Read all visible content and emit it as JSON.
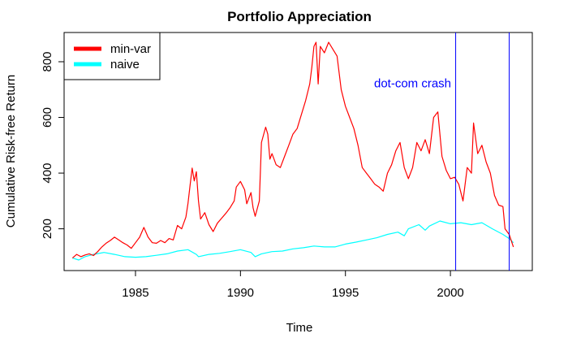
{
  "chart_data": {
    "type": "line",
    "title": "Portfolio Appreciation",
    "xlabel": "Time",
    "ylabel": "Cumulative Risk-free Return",
    "xlim": [
      1981.6,
      2003.9
    ],
    "ylim": [
      50,
      905
    ],
    "x_ticks": [
      1985,
      1990,
      1995,
      2000
    ],
    "y_ticks": [
      200,
      400,
      600,
      800
    ],
    "grid": false,
    "legend_position": "top-left",
    "annotation": {
      "text": "dot-com crash",
      "x": 1998.2,
      "y": 708,
      "color": "#0000ff"
    },
    "vlines": [
      {
        "x": 2000.25,
        "color": "#0000ff"
      },
      {
        "x": 2002.8,
        "color": "#0000ff"
      }
    ],
    "series": [
      {
        "name": "min-var",
        "color": "#ff0000",
        "points": [
          [
            1982.0,
            95
          ],
          [
            1982.2,
            108
          ],
          [
            1982.4,
            100
          ],
          [
            1982.6,
            106
          ],
          [
            1982.8,
            110
          ],
          [
            1983.0,
            104
          ],
          [
            1983.2,
            118
          ],
          [
            1983.4,
            135
          ],
          [
            1983.6,
            148
          ],
          [
            1983.8,
            158
          ],
          [
            1984.0,
            170
          ],
          [
            1984.2,
            160
          ],
          [
            1984.4,
            150
          ],
          [
            1984.6,
            142
          ],
          [
            1984.8,
            130
          ],
          [
            1985.0,
            150
          ],
          [
            1985.2,
            170
          ],
          [
            1985.4,
            205
          ],
          [
            1985.6,
            170
          ],
          [
            1985.8,
            150
          ],
          [
            1986.0,
            148
          ],
          [
            1986.2,
            158
          ],
          [
            1986.4,
            150
          ],
          [
            1986.6,
            165
          ],
          [
            1986.8,
            160
          ],
          [
            1987.0,
            212
          ],
          [
            1987.2,
            200
          ],
          [
            1987.4,
            242
          ],
          [
            1987.5,
            292
          ],
          [
            1987.6,
            355
          ],
          [
            1987.7,
            418
          ],
          [
            1987.8,
            372
          ],
          [
            1987.9,
            405
          ],
          [
            1988.0,
            300
          ],
          [
            1988.1,
            235
          ],
          [
            1988.3,
            258
          ],
          [
            1988.5,
            215
          ],
          [
            1988.7,
            190
          ],
          [
            1988.9,
            220
          ],
          [
            1989.1,
            238
          ],
          [
            1989.3,
            255
          ],
          [
            1989.5,
            275
          ],
          [
            1989.7,
            300
          ],
          [
            1989.8,
            350
          ],
          [
            1990.0,
            370
          ],
          [
            1990.2,
            340
          ],
          [
            1990.3,
            290
          ],
          [
            1990.5,
            330
          ],
          [
            1990.6,
            275
          ],
          [
            1990.7,
            245
          ],
          [
            1990.9,
            300
          ],
          [
            1991.0,
            510
          ],
          [
            1991.2,
            565
          ],
          [
            1991.3,
            540
          ],
          [
            1991.4,
            450
          ],
          [
            1991.5,
            470
          ],
          [
            1991.7,
            430
          ],
          [
            1991.9,
            420
          ],
          [
            1992.1,
            460
          ],
          [
            1992.3,
            500
          ],
          [
            1992.5,
            540
          ],
          [
            1992.7,
            560
          ],
          [
            1992.9,
            610
          ],
          [
            1993.1,
            660
          ],
          [
            1993.3,
            720
          ],
          [
            1993.4,
            780
          ],
          [
            1993.5,
            855
          ],
          [
            1993.6,
            870
          ],
          [
            1993.7,
            720
          ],
          [
            1993.8,
            855
          ],
          [
            1994.0,
            832
          ],
          [
            1994.2,
            870
          ],
          [
            1994.4,
            845
          ],
          [
            1994.6,
            820
          ],
          [
            1994.8,
            700
          ],
          [
            1995.0,
            640
          ],
          [
            1995.2,
            600
          ],
          [
            1995.4,
            560
          ],
          [
            1995.6,
            500
          ],
          [
            1995.8,
            420
          ],
          [
            1996.0,
            400
          ],
          [
            1996.2,
            380
          ],
          [
            1996.4,
            360
          ],
          [
            1996.6,
            350
          ],
          [
            1996.8,
            335
          ],
          [
            1997.0,
            400
          ],
          [
            1997.2,
            430
          ],
          [
            1997.4,
            480
          ],
          [
            1997.6,
            510
          ],
          [
            1997.8,
            420
          ],
          [
            1998.0,
            380
          ],
          [
            1998.2,
            420
          ],
          [
            1998.4,
            510
          ],
          [
            1998.6,
            480
          ],
          [
            1998.8,
            520
          ],
          [
            1999.0,
            470
          ],
          [
            1999.2,
            600
          ],
          [
            1999.4,
            620
          ],
          [
            1999.6,
            460
          ],
          [
            1999.8,
            410
          ],
          [
            2000.0,
            380
          ],
          [
            2000.2,
            385
          ],
          [
            2000.4,
            360
          ],
          [
            2000.6,
            300
          ],
          [
            2000.8,
            420
          ],
          [
            2001.0,
            400
          ],
          [
            2001.1,
            580
          ],
          [
            2001.3,
            470
          ],
          [
            2001.5,
            500
          ],
          [
            2001.7,
            440
          ],
          [
            2001.9,
            400
          ],
          [
            2002.1,
            320
          ],
          [
            2002.3,
            285
          ],
          [
            2002.5,
            280
          ],
          [
            2002.6,
            200
          ],
          [
            2002.8,
            180
          ],
          [
            2003.0,
            135
          ]
        ]
      },
      {
        "name": "naive",
        "color": "#00ffff",
        "points": [
          [
            1982.0,
            95
          ],
          [
            1982.3,
            88
          ],
          [
            1982.6,
            100
          ],
          [
            1983.0,
            108
          ],
          [
            1983.5,
            115
          ],
          [
            1984.0,
            108
          ],
          [
            1984.5,
            100
          ],
          [
            1985.0,
            98
          ],
          [
            1985.5,
            100
          ],
          [
            1986.0,
            105
          ],
          [
            1986.5,
            110
          ],
          [
            1987.0,
            120
          ],
          [
            1987.5,
            125
          ],
          [
            1987.9,
            108
          ],
          [
            1988.0,
            100
          ],
          [
            1988.5,
            108
          ],
          [
            1989.0,
            112
          ],
          [
            1989.5,
            118
          ],
          [
            1990.0,
            125
          ],
          [
            1990.5,
            115
          ],
          [
            1990.7,
            100
          ],
          [
            1991.0,
            110
          ],
          [
            1991.5,
            118
          ],
          [
            1992.0,
            120
          ],
          [
            1992.5,
            128
          ],
          [
            1993.0,
            132
          ],
          [
            1993.5,
            138
          ],
          [
            1994.0,
            135
          ],
          [
            1994.5,
            135
          ],
          [
            1995.0,
            145
          ],
          [
            1995.5,
            152
          ],
          [
            1996.0,
            160
          ],
          [
            1996.5,
            168
          ],
          [
            1997.0,
            180
          ],
          [
            1997.5,
            188
          ],
          [
            1997.8,
            175
          ],
          [
            1998.0,
            200
          ],
          [
            1998.5,
            215
          ],
          [
            1998.8,
            195
          ],
          [
            1999.0,
            210
          ],
          [
            1999.5,
            228
          ],
          [
            2000.0,
            218
          ],
          [
            2000.5,
            222
          ],
          [
            2001.0,
            215
          ],
          [
            2001.5,
            222
          ],
          [
            2002.0,
            200
          ],
          [
            2002.5,
            180
          ],
          [
            2002.8,
            165
          ],
          [
            2003.0,
            150
          ]
        ]
      }
    ]
  }
}
